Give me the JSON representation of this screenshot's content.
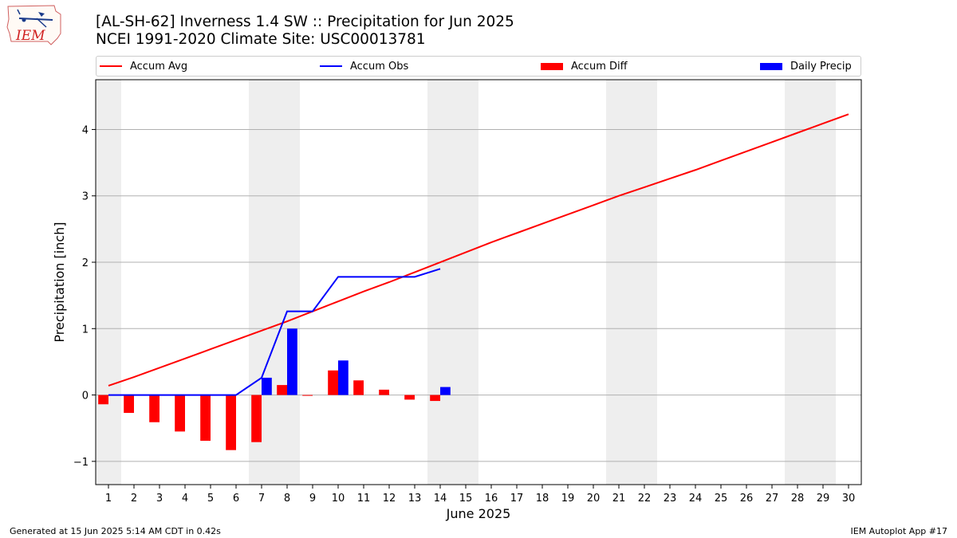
{
  "title_line1": "[AL-SH-62] Inverness 1.4 SW :: Precipitation for Jun 2025",
  "title_line2": "NCEI 1991-2020 Climate Site: USC00013781",
  "logo_text": "IEM",
  "footer_left": "Generated at 15 Jun 2025 5:14 AM CDT in 0.42s",
  "footer_right": "IEM Autoplot App #17",
  "legend": [
    {
      "label": "Accum Avg",
      "kind": "line",
      "color": "#ff0000"
    },
    {
      "label": "Accum Obs",
      "kind": "line",
      "color": "#0000ff"
    },
    {
      "label": "Accum Diff",
      "kind": "bar",
      "color": "#ff0000"
    },
    {
      "label": "Daily Precip",
      "kind": "bar",
      "color": "#0000ff"
    }
  ],
  "chart_data": {
    "type": "bar",
    "xlabel": "June 2025",
    "ylabel": "Precipitation [inch]",
    "ylim": [
      -1.35,
      4.75
    ],
    "xlim": [
      0.5,
      30.5
    ],
    "yticks": [
      -1,
      0,
      1,
      2,
      3,
      4
    ],
    "ytick_labels": [
      "−1",
      "0",
      "1",
      "2",
      "3",
      "4"
    ],
    "days": [
      1,
      2,
      3,
      4,
      5,
      6,
      7,
      8,
      9,
      10,
      11,
      12,
      13,
      14,
      15,
      16,
      17,
      18,
      19,
      20,
      21,
      22,
      23,
      24,
      25,
      26,
      27,
      28,
      29,
      30
    ],
    "weekend_shading_days": [
      1,
      7,
      8,
      14,
      15,
      21,
      22,
      28,
      29
    ],
    "grid": "horizontal",
    "series": [
      {
        "name": "Accum Avg",
        "type": "line",
        "color": "#ff0000",
        "x": [
          1,
          2,
          3,
          4,
          5,
          6,
          7,
          8,
          9,
          10,
          11,
          12,
          13,
          14,
          15,
          16,
          17,
          18,
          19,
          20,
          21,
          22,
          23,
          24,
          25,
          26,
          27,
          28,
          29,
          30
        ],
        "values": [
          0.14,
          0.27,
          0.41,
          0.55,
          0.69,
          0.83,
          0.97,
          1.11,
          1.26,
          1.41,
          1.56,
          1.7,
          1.85,
          2.0,
          2.15,
          2.3,
          2.44,
          2.58,
          2.72,
          2.86,
          3.0,
          3.13,
          3.26,
          3.39,
          3.53,
          3.67,
          3.81,
          3.95,
          4.09,
          4.23
        ]
      },
      {
        "name": "Accum Obs",
        "type": "line",
        "color": "#0000ff",
        "x": [
          1,
          2,
          3,
          4,
          5,
          6,
          7,
          8,
          9,
          10,
          11,
          12,
          13,
          14
        ],
        "values": [
          0,
          0,
          0,
          0,
          0,
          0,
          0.26,
          1.26,
          1.26,
          1.78,
          1.78,
          1.78,
          1.78,
          1.9
        ]
      },
      {
        "name": "Accum Diff",
        "type": "bar",
        "color": "#ff0000",
        "x": [
          1,
          2,
          3,
          4,
          5,
          6,
          7,
          8,
          9,
          10,
          11,
          12,
          13,
          14
        ],
        "values": [
          -0.14,
          -0.27,
          -0.41,
          -0.55,
          -0.69,
          -0.83,
          -0.71,
          0.15,
          0.0,
          0.37,
          0.22,
          0.08,
          -0.07,
          -0.09
        ]
      },
      {
        "name": "Daily Precip",
        "type": "bar",
        "color": "#0000ff",
        "x": [
          7,
          8,
          10,
          14
        ],
        "values": [
          0.26,
          1.0,
          0.52,
          0.12
        ]
      }
    ]
  }
}
